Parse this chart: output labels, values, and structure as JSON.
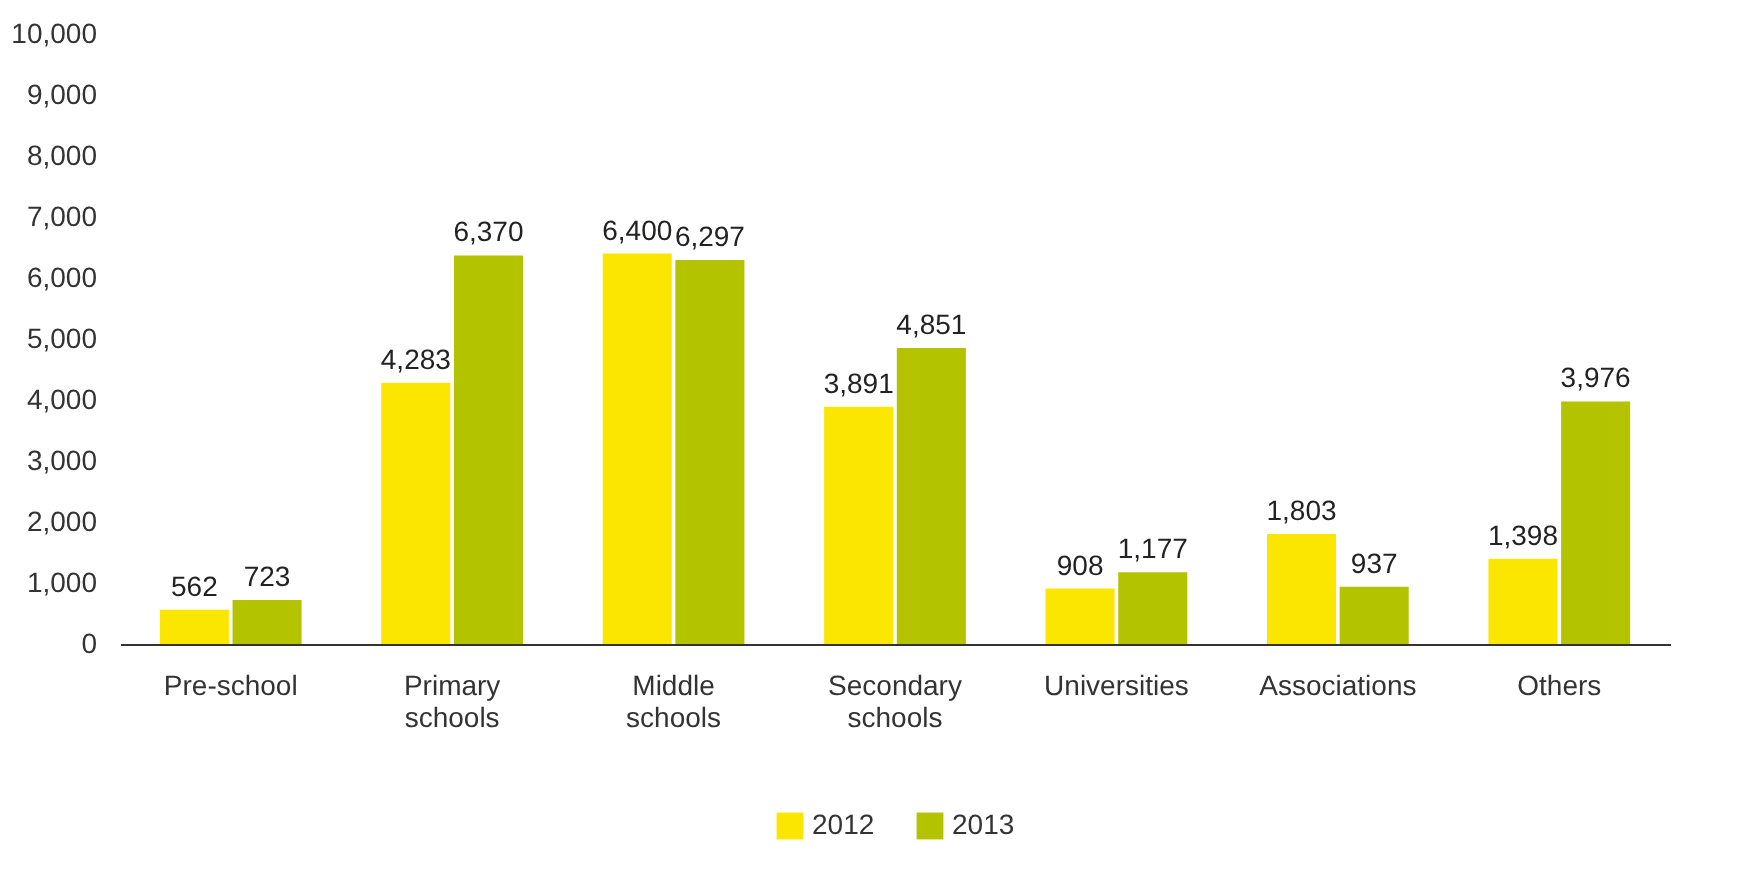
{
  "chart_data": {
    "type": "bar",
    "categories": [
      "Pre-school",
      "Primary schools",
      "Middle schools",
      "Secondary schools",
      "Universities",
      "Associations",
      "Others"
    ],
    "series": [
      {
        "name": "2012",
        "color": "#fae600",
        "values": [
          562,
          4283,
          6400,
          3891,
          908,
          1803,
          1398
        ],
        "value_labels": [
          "562",
          "4,283",
          "6,400",
          "3,891",
          "908",
          "1,803",
          "1,398"
        ]
      },
      {
        "name": "2013",
        "color": "#b4c300",
        "values": [
          723,
          6370,
          6297,
          4851,
          1177,
          937,
          3976
        ],
        "value_labels": [
          "723",
          "6,370",
          "6,297",
          "4,851",
          "1,177",
          "937",
          "3,976"
        ]
      }
    ],
    "ylim": [
      0,
      10000
    ],
    "yticks": [
      0,
      {
        "value": 1000,
        "label": "1,000"
      },
      {
        "value": 2000,
        "label": "2,000"
      },
      {
        "value": 3000,
        "label": "3,000"
      },
      {
        "value": 4000,
        "label": "4,000"
      },
      {
        "value": 5000,
        "label": "5,000"
      },
      {
        "value": 6000,
        "label": "6,000"
      },
      {
        "value": 7000,
        "label": "7,000"
      },
      {
        "value": 8000,
        "label": "8,000"
      },
      {
        "value": 9000,
        "label": "9,000"
      },
      {
        "value": 10000,
        "label": "10,000"
      }
    ],
    "legend": "bottom",
    "grid": false
  }
}
